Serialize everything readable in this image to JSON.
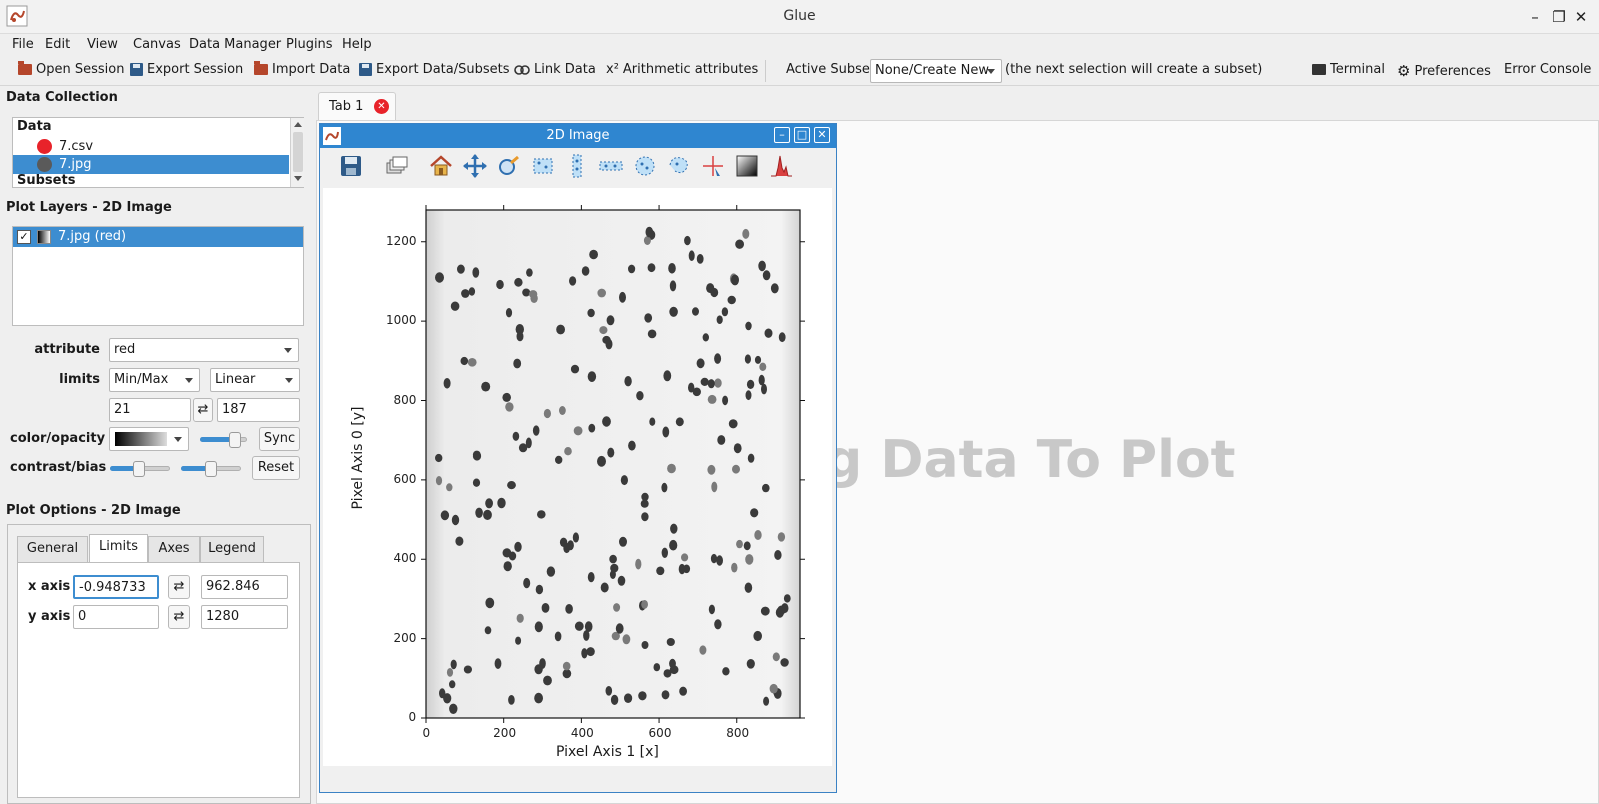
{
  "window": {
    "title": "Glue"
  },
  "menu": [
    "File",
    "Edit",
    "View",
    "Canvas",
    "Data Manager",
    "Plugins",
    "Help"
  ],
  "toolbar": {
    "open_session": "Open Session",
    "export_session": "Export Session",
    "import_data": "Import Data",
    "export_data": "Export Data/Subsets",
    "link_data": "Link Data",
    "arith_symbol": "x²",
    "arith": "Arithmetic attributes",
    "active_subset_label": "Active Subset:",
    "active_subset_value": "None/Create New",
    "subset_hint": "(the next selection will create a subset)",
    "terminal": "Terminal",
    "preferences": "Preferences",
    "error_console": "Error Console"
  },
  "data_collection": {
    "title": "Data Collection",
    "data_header": "Data",
    "items": [
      {
        "label": "7.csv",
        "color": "#e8232a"
      },
      {
        "label": "7.jpg",
        "color": "#5a5a5a"
      }
    ],
    "subsets_header": "Subsets"
  },
  "plot_layers": {
    "title": "Plot Layers - 2D Image",
    "layer": "7.jpg (red)"
  },
  "layer_options": {
    "attribute_label": "attribute",
    "attribute_value": "red",
    "limits_label": "limits",
    "limits_mode": "Min/Max",
    "stretch": "Linear",
    "vmin": "21",
    "vmax": "187",
    "color_label": "color/opacity",
    "sync": "Sync",
    "contrast_label": "contrast/bias",
    "reset": "Reset"
  },
  "plot_options": {
    "title": "Plot Options - 2D Image",
    "tabs": [
      "General",
      "Limits",
      "Axes",
      "Legend"
    ],
    "active_tab": "Limits",
    "x_label": "x axis",
    "x_min": "-0.948733",
    "x_max": "962.846",
    "y_label": "y axis",
    "y_min": "0",
    "y_max": "1280"
  },
  "tabs": {
    "tab1": "Tab 1"
  },
  "placeholder_text": "g Data To Plot",
  "viewer": {
    "title": "2D Image",
    "xlabel": "Pixel Axis 1 [x]",
    "ylabel": "Pixel Axis 0 [y]",
    "xticks": [
      "0",
      "200",
      "400",
      "600",
      "800"
    ],
    "yticks": [
      "0",
      "200",
      "400",
      "600",
      "800",
      "1000",
      "1200"
    ]
  },
  "colors": {
    "accent": "#2f86d0",
    "selection": "#3d8dd0"
  }
}
